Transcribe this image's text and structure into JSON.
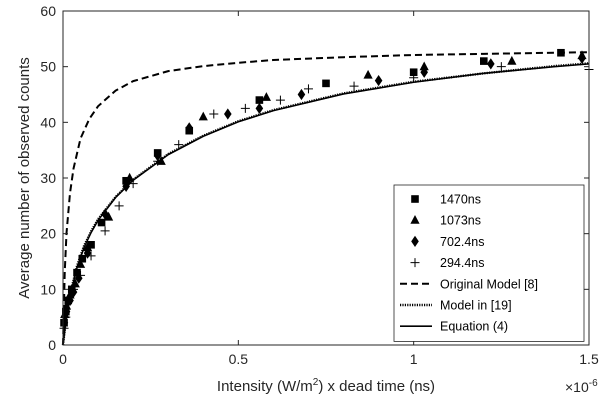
{
  "chart_data": {
    "type": "scatter",
    "xlabel_prefix": "Intensity (W/m",
    "xlabel_sup": "2",
    "xlabel_suffix": ") x dead time (ns)",
    "ylabel": "Average number of observed counts",
    "x_multiplier_base": "×10",
    "x_multiplier_exp": "-6",
    "xlim": [
      0,
      1.5
    ],
    "ylim": [
      0,
      60
    ],
    "x_ticks": [
      "0",
      "0.5",
      "1",
      "1.5"
    ],
    "y_ticks": [
      "0",
      "10",
      "20",
      "30",
      "40",
      "50",
      "60"
    ],
    "x_tick_values": [
      0,
      0.5,
      1,
      1.5
    ],
    "y_tick_values": [
      0,
      10,
      20,
      30,
      40,
      50,
      60
    ],
    "grid": false,
    "legend_position": "bottom-right",
    "series": [
      {
        "name": "1470ns",
        "marker": "square",
        "x": [
          0.003,
          0.008,
          0.015,
          0.025,
          0.04,
          0.055,
          0.08,
          0.11,
          0.18,
          0.27,
          0.36,
          0.56,
          0.75,
          1.0,
          1.2,
          1.42
        ],
        "y": [
          4.0,
          6.0,
          8.0,
          10.0,
          13.0,
          15.5,
          18.0,
          22.0,
          29.5,
          34.5,
          38.5,
          44.0,
          47.0,
          49.0,
          51.0,
          52.5
        ]
      },
      {
        "name": "1073ns",
        "marker": "triangle",
        "x": [
          0.005,
          0.01,
          0.02,
          0.035,
          0.05,
          0.07,
          0.13,
          0.19,
          0.28,
          0.4,
          0.58,
          0.87,
          1.03,
          1.28,
          1.48
        ],
        "y": [
          5.5,
          7.0,
          9.0,
          11.0,
          14.5,
          17.5,
          23.0,
          30.0,
          33.0,
          41.0,
          44.5,
          48.5,
          50.0,
          51.0,
          52.0
        ]
      },
      {
        "name": "702.4ns",
        "marker": "diamond",
        "x": [
          0.004,
          0.01,
          0.02,
          0.03,
          0.045,
          0.07,
          0.12,
          0.18,
          0.27,
          0.36,
          0.47,
          0.56,
          0.68,
          0.9,
          1.03,
          1.22,
          1.48
        ],
        "y": [
          4.0,
          6.0,
          8.0,
          9.5,
          12.0,
          16.5,
          23.5,
          28.5,
          34.0,
          39.0,
          41.5,
          42.5,
          45.0,
          47.5,
          49.0,
          50.5,
          51.5
        ]
      },
      {
        "name": "294.4ns",
        "marker": "plus",
        "x": [
          0.003,
          0.008,
          0.015,
          0.03,
          0.05,
          0.08,
          0.12,
          0.16,
          0.2,
          0.27,
          0.33,
          0.43,
          0.52,
          0.62,
          0.7,
          0.83,
          1.0,
          1.25,
          1.5
        ],
        "y": [
          3.0,
          5.0,
          8.0,
          10.0,
          12.5,
          16.0,
          20.5,
          25.0,
          29.0,
          33.0,
          36.0,
          41.5,
          42.5,
          44.0,
          46.0,
          46.5,
          48.0,
          50.0,
          49.5
        ]
      }
    ],
    "curves": [
      {
        "name": "Original Model [8]",
        "style": "dashed",
        "x": [
          0,
          0.005,
          0.01,
          0.02,
          0.03,
          0.05,
          0.075,
          0.1,
          0.15,
          0.2,
          0.3,
          0.4,
          0.5,
          0.6,
          0.8,
          1.0,
          1.2,
          1.4,
          1.5
        ],
        "y": [
          0,
          13.2,
          20.1,
          27.3,
          31.7,
          37.1,
          40.6,
          42.9,
          45.7,
          47.4,
          49.2,
          50.1,
          50.7,
          51.2,
          51.7,
          52.1,
          52.3,
          52.5,
          52.6
        ]
      },
      {
        "name": "Model in [19]",
        "style": "dotted",
        "x": [
          0,
          0.01,
          0.02,
          0.04,
          0.06,
          0.08,
          0.1,
          0.15,
          0.2,
          0.3,
          0.4,
          0.5,
          0.6,
          0.8,
          1.0,
          1.2,
          1.4,
          1.5
        ],
        "y": [
          0,
          5.4,
          9.1,
          14.2,
          17.8,
          20.4,
          22.6,
          26.6,
          29.7,
          34.3,
          37.6,
          40.2,
          42.2,
          45.2,
          47.3,
          48.8,
          50.1,
          50.6
        ]
      },
      {
        "name": "Equation (4)",
        "style": "solid",
        "x": [
          0,
          0.01,
          0.02,
          0.04,
          0.06,
          0.08,
          0.1,
          0.15,
          0.2,
          0.3,
          0.4,
          0.5,
          0.6,
          0.8,
          1.0,
          1.2,
          1.4,
          1.5
        ],
        "y": [
          0,
          5.2,
          8.8,
          13.9,
          17.5,
          20.2,
          22.4,
          26.5,
          29.6,
          34.2,
          37.5,
          40.1,
          42.1,
          45.1,
          47.2,
          48.8,
          50.0,
          50.5
        ]
      }
    ],
    "colors": {
      "axis": "#262626",
      "series": "#000000",
      "background": "#ffffff"
    }
  }
}
